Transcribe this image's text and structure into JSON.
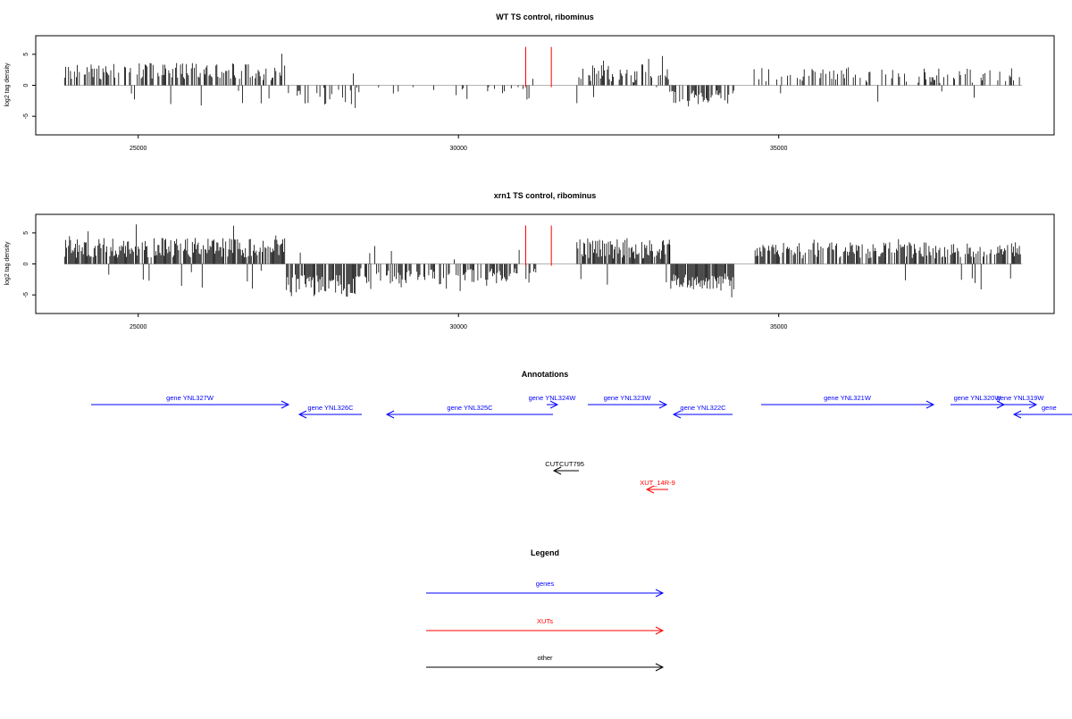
{
  "chart_data": [
    {
      "type": "bar",
      "title": "WT TS control, ribominus",
      "ylabel": "log2 tag density",
      "xlabel": "",
      "xlim": [
        23400,
        39300
      ],
      "ylim": [
        -8,
        8
      ],
      "xticks": [
        25000,
        30000,
        35000
      ],
      "xtick_labels": [
        "25000",
        "30000",
        "35000"
      ],
      "yticks": [
        -5,
        0,
        5
      ],
      "ytick_labels": [
        "-5",
        "0",
        "5"
      ],
      "markers": [
        31050,
        31450
      ],
      "segments": [
        {
          "start": 23850,
          "end": 27300,
          "sign": 1,
          "mean": 2.2,
          "amp": 1.4,
          "density": 0.55
        },
        {
          "start": 27300,
          "end": 28400,
          "sign": -1,
          "mean": 1.6,
          "amp": 1.6,
          "density": 0.25
        },
        {
          "start": 28400,
          "end": 31250,
          "sign": -1,
          "mean": 1.3,
          "amp": 1.2,
          "density": 0.12
        },
        {
          "start": 31850,
          "end": 33300,
          "sign": 1,
          "mean": 1.8,
          "amp": 1.6,
          "density": 0.5
        },
        {
          "start": 33300,
          "end": 34300,
          "sign": -1,
          "mean": 2.0,
          "amp": 1.2,
          "density": 0.6
        },
        {
          "start": 34600,
          "end": 38800,
          "sign": 1,
          "mean": 1.6,
          "amp": 1.2,
          "density": 0.3
        }
      ]
    },
    {
      "type": "bar",
      "title": "xrn1 TS control, ribominus",
      "ylabel": "log2 tag density",
      "xlabel": "",
      "xlim": [
        23400,
        39300
      ],
      "ylim": [
        -8,
        8
      ],
      "xticks": [
        25000,
        30000,
        35000
      ],
      "xtick_labels": [
        "25000",
        "30000",
        "35000"
      ],
      "yticks": [
        -5,
        0,
        5
      ],
      "ytick_labels": [
        "-5",
        "0",
        "5"
      ],
      "markers": [
        31050,
        31450
      ],
      "segments": [
        {
          "start": 23850,
          "end": 27300,
          "sign": 1,
          "mean": 2.6,
          "amp": 1.6,
          "density": 0.9
        },
        {
          "start": 27300,
          "end": 28400,
          "sign": -1,
          "mean": 3.5,
          "amp": 1.8,
          "density": 0.9
        },
        {
          "start": 28400,
          "end": 31250,
          "sign": -1,
          "mean": 2.0,
          "amp": 1.3,
          "density": 0.5
        },
        {
          "start": 31850,
          "end": 33300,
          "sign": 1,
          "mean": 2.4,
          "amp": 1.6,
          "density": 0.8
        },
        {
          "start": 33300,
          "end": 34300,
          "sign": -1,
          "mean": 2.8,
          "amp": 1.3,
          "density": 0.9
        },
        {
          "start": 34600,
          "end": 38800,
          "sign": 1,
          "mean": 2.2,
          "amp": 1.3,
          "density": 0.7
        }
      ]
    }
  ],
  "annotations": {
    "title": "Annotations",
    "features": [
      {
        "label": "gene YNL327W",
        "start": 23250,
        "end": 27400,
        "strand": "+",
        "color": "#0000ff",
        "row": 0
      },
      {
        "label": "gene YNL326C",
        "start": 27700,
        "end": 29000,
        "strand": "-",
        "color": "#0000ff",
        "row": 1
      },
      {
        "label": "gene YNL325C",
        "start": 29400,
        "end": 32100,
        "strand": "-",
        "color": "#0000ff",
        "row": 1
      },
      {
        "label": "gene YNL324W",
        "start": 32100,
        "end": 32200,
        "strand": "+",
        "color": "#0000ff",
        "row": 0
      },
      {
        "label": "gene YNL323W",
        "start": 32600,
        "end": 33900,
        "strand": "+",
        "color": "#0000ff",
        "row": 0
      },
      {
        "label": "gene YNL322C",
        "start": 34000,
        "end": 35200,
        "strand": "-",
        "color": "#0000ff",
        "row": 1
      },
      {
        "label": "gene YNL321W",
        "start": 36000,
        "end": 39600,
        "strand": "+",
        "color": "#0000ff",
        "row": 0
      },
      {
        "label": "gene YNL320W",
        "start": 39900,
        "end": 41100,
        "strand": "+",
        "color": "#0000ff",
        "row": 0
      },
      {
        "label": "gene YNL319W",
        "start": 41100,
        "end": 41700,
        "strand": "+",
        "color": "#0000ff",
        "row": 0
      },
      {
        "label": "gene",
        "start": 41500,
        "end": 42600,
        "strand": "-",
        "color": "#0000ff",
        "row": 1
      },
      {
        "label": "CUT",
        "start": 31500,
        "end": 31600,
        "strand": "-",
        "color": "#000000",
        "row": 3
      },
      {
        "label": "CUT795",
        "start": 31600,
        "end": 32100,
        "strand": "-",
        "color": "#000000",
        "row": 3
      },
      {
        "label": "XUT_14R-9",
        "start": 33450,
        "end": 33900,
        "strand": "-",
        "color": "#ff0000",
        "row": 4
      }
    ]
  },
  "legend": {
    "title": "Legend",
    "items": [
      {
        "label": "genes",
        "color": "#0000ff"
      },
      {
        "label": "XUTs",
        "color": "#ff0000"
      },
      {
        "label": "other",
        "color": "#000000"
      }
    ]
  },
  "colors": {
    "bars": "#000000",
    "marker": "#ff0000",
    "baseline": "#999999",
    "frame": "#000000"
  }
}
